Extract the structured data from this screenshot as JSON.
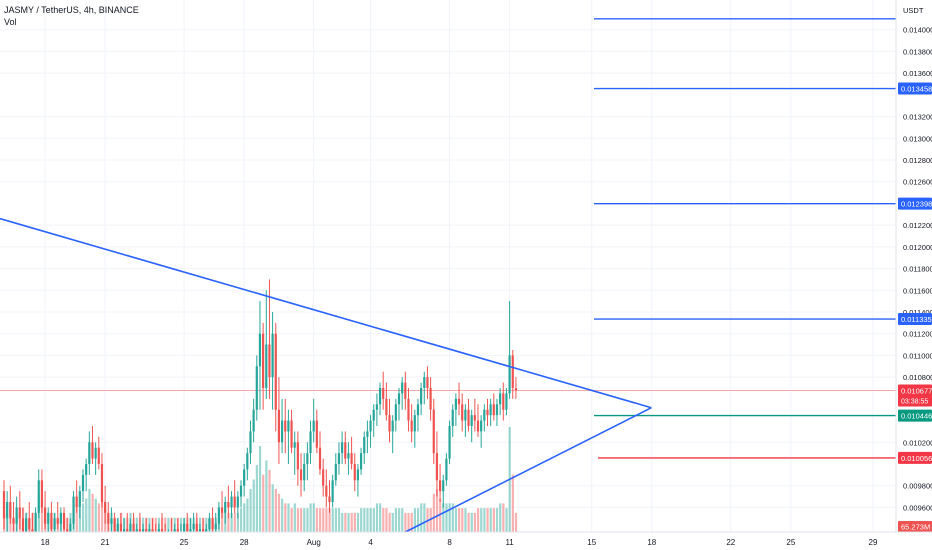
{
  "header": {
    "symbol_line": "JASMY / TetherUS, 4h, BINANCE",
    "volume_label": "Vol"
  },
  "colors": {
    "up": "#26a69a",
    "down": "#ef5350",
    "trendline": "#2962ff",
    "green_line": "#089981",
    "red_line": "#f23645",
    "price_line": "#f7a8a8",
    "grid": "#f0f3fa",
    "axis_text": "#131722"
  },
  "chart_data": {
    "type": "candlestick",
    "title": "JASMY / TetherUS, 4h, BINANCE",
    "currency": "USDT",
    "ylim": [
      0.0093,
      0.0142
    ],
    "y_ticks": [
      "0.014000",
      "0.013800",
      "0.013600",
      "0.013200",
      "0.013000",
      "0.012800",
      "0.012600",
      "0.012200",
      "0.012000",
      "0.011800",
      "0.011600",
      "0.011400",
      "0.011200",
      "0.011000",
      "0.010800",
      "0.010200",
      "0.009800",
      "0.009600"
    ],
    "x_ticks": [
      {
        "label": "18",
        "i": 13
      },
      {
        "label": "21",
        "i": 32
      },
      {
        "label": "25",
        "i": 57
      },
      {
        "label": "28",
        "i": 76
      },
      {
        "label": "Aug",
        "i": 98
      },
      {
        "label": "4",
        "i": 116
      },
      {
        "label": "8",
        "i": 141
      },
      {
        "label": "11",
        "i": 160
      },
      {
        "label": "15",
        "i": 186
      },
      {
        "label": "18",
        "i": 205
      },
      {
        "label": "22",
        "i": 230
      },
      {
        "label": "25",
        "i": 249
      },
      {
        "label": "29",
        "i": 275
      }
    ],
    "price_labels": [
      {
        "text": "0.013458",
        "value": 0.013458,
        "type": "blue"
      },
      {
        "text": "0.012398",
        "value": 0.012398,
        "type": "blue"
      },
      {
        "text": "0.011335",
        "value": 0.011335,
        "type": "blue"
      },
      {
        "text": "0.010446",
        "value": 0.010446,
        "type": "green"
      },
      {
        "text": "0.010056",
        "value": 0.010056,
        "type": "red"
      }
    ],
    "horizontal_levels": [
      {
        "value": 0.0141,
        "type": "blue"
      },
      {
        "value": 0.013458,
        "type": "blue"
      },
      {
        "value": 0.012398,
        "type": "blue"
      },
      {
        "value": 0.011335,
        "type": "blue"
      },
      {
        "value": 0.010446,
        "type": "green"
      },
      {
        "value": 0.010056,
        "type": "red"
      }
    ],
    "last_price": {
      "text": "0.010677",
      "value": 0.010677,
      "countdown": "03:38:55"
    },
    "volume_badge": "65.273M",
    "trendlines": [
      {
        "p1": [
          -6,
          0.0123
        ],
        "p2": [
          196,
          0.0105
        ]
      },
      {
        "p1": [
          122,
          0.0093
        ],
        "p2": [
          196,
          0.0105
        ]
      }
    ],
    "candles": [
      [
        0.00975,
        0.00985,
        0.0094,
        0.0095
      ],
      [
        0.0095,
        0.00975,
        0.00935,
        0.00965
      ],
      [
        0.00965,
        0.0098,
        0.00945,
        0.0095
      ],
      [
        0.0095,
        0.00965,
        0.0093,
        0.00945
      ],
      [
        0.00945,
        0.0097,
        0.00935,
        0.0096
      ],
      [
        0.0096,
        0.00975,
        0.0094,
        0.0095
      ],
      [
        0.0095,
        0.0096,
        0.00925,
        0.00935
      ],
      [
        0.00935,
        0.00955,
        0.00925,
        0.0095
      ],
      [
        0.0095,
        0.00965,
        0.00935,
        0.0094
      ],
      [
        0.0094,
        0.00955,
        0.0092,
        0.00935
      ],
      [
        0.00935,
        0.0096,
        0.0093,
        0.00955
      ],
      [
        0.00955,
        0.00995,
        0.0095,
        0.00985
      ],
      [
        0.00985,
        0.00995,
        0.00955,
        0.0096
      ],
      [
        0.0096,
        0.00975,
        0.0094,
        0.00945
      ],
      [
        0.00945,
        0.0096,
        0.0093,
        0.00955
      ],
      [
        0.00955,
        0.00965,
        0.00935,
        0.0094
      ],
      [
        0.0094,
        0.00955,
        0.00925,
        0.0095
      ],
      [
        0.0095,
        0.00965,
        0.0094,
        0.00945
      ],
      [
        0.00945,
        0.0096,
        0.00935,
        0.00955
      ],
      [
        0.00955,
        0.0096,
        0.00935,
        0.0094
      ],
      [
        0.0094,
        0.0095,
        0.00925,
        0.0093
      ],
      [
        0.0093,
        0.0095,
        0.0092,
        0.00945
      ],
      [
        0.00945,
        0.00975,
        0.0094,
        0.0097
      ],
      [
        0.0097,
        0.00985,
        0.00955,
        0.0096
      ],
      [
        0.0096,
        0.0098,
        0.0095,
        0.00975
      ],
      [
        0.00975,
        0.00995,
        0.00965,
        0.0099
      ],
      [
        0.0099,
        0.01005,
        0.00975,
        0.01
      ],
      [
        0.01,
        0.0103,
        0.0099,
        0.0102
      ],
      [
        0.0102,
        0.01035,
        0.01,
        0.01005
      ],
      [
        0.01005,
        0.0102,
        0.0099,
        0.01015
      ],
      [
        0.01015,
        0.01025,
        0.00995,
        0.01
      ],
      [
        0.01,
        0.0101,
        0.0096,
        0.00965
      ],
      [
        0.00965,
        0.0098,
        0.00945,
        0.00955
      ],
      [
        0.00955,
        0.00965,
        0.00935,
        0.00945
      ],
      [
        0.00945,
        0.0096,
        0.00935,
        0.0095
      ],
      [
        0.0095,
        0.00955,
        0.0093,
        0.00935
      ],
      [
        0.00935,
        0.0095,
        0.00925,
        0.00945
      ],
      [
        0.00945,
        0.00955,
        0.0093,
        0.00935
      ],
      [
        0.00935,
        0.0095,
        0.00925,
        0.0094
      ],
      [
        0.0094,
        0.00955,
        0.0093,
        0.00935
      ],
      [
        0.00935,
        0.0095,
        0.00925,
        0.00945
      ],
      [
        0.00945,
        0.00955,
        0.0093,
        0.00935
      ],
      [
        0.00935,
        0.00945,
        0.0092,
        0.0094
      ],
      [
        0.0094,
        0.00955,
        0.0093,
        0.00935
      ],
      [
        0.00935,
        0.00945,
        0.00925,
        0.0094
      ],
      [
        0.0094,
        0.0095,
        0.00925,
        0.0093
      ],
      [
        0.0093,
        0.00945,
        0.0092,
        0.0094
      ],
      [
        0.0094,
        0.0095,
        0.0093,
        0.00935
      ],
      [
        0.00935,
        0.00945,
        0.0092,
        0.0093
      ],
      [
        0.0093,
        0.00945,
        0.0092,
        0.0094
      ],
      [
        0.0094,
        0.00955,
        0.0093,
        0.00935
      ],
      [
        0.00935,
        0.00945,
        0.0092,
        0.0093
      ],
      [
        0.0093,
        0.0094,
        0.00915,
        0.00935
      ],
      [
        0.00935,
        0.0095,
        0.00925,
        0.0093
      ],
      [
        0.0093,
        0.00945,
        0.0092,
        0.0094
      ],
      [
        0.0094,
        0.0095,
        0.00925,
        0.0093
      ],
      [
        0.0093,
        0.00945,
        0.0092,
        0.00935
      ],
      [
        0.00935,
        0.0095,
        0.00925,
        0.00945
      ],
      [
        0.00945,
        0.00955,
        0.0093,
        0.00935
      ],
      [
        0.00935,
        0.0095,
        0.00925,
        0.0094
      ],
      [
        0.0094,
        0.00955,
        0.0093,
        0.00945
      ],
      [
        0.00945,
        0.00955,
        0.0093,
        0.00935
      ],
      [
        0.00935,
        0.00945,
        0.0092,
        0.0094
      ],
      [
        0.0094,
        0.0095,
        0.0093,
        0.00935
      ],
      [
        0.00935,
        0.00945,
        0.00925,
        0.0094
      ],
      [
        0.0094,
        0.00955,
        0.0093,
        0.0095
      ],
      [
        0.0095,
        0.0096,
        0.00935,
        0.0094
      ],
      [
        0.0094,
        0.00955,
        0.0093,
        0.00945
      ],
      [
        0.00945,
        0.00965,
        0.0094,
        0.0096
      ],
      [
        0.0096,
        0.00975,
        0.0095,
        0.00955
      ],
      [
        0.00955,
        0.0097,
        0.00945,
        0.00965
      ],
      [
        0.00965,
        0.0098,
        0.0095,
        0.0096
      ],
      [
        0.0096,
        0.00975,
        0.0095,
        0.0097
      ],
      [
        0.0097,
        0.00985,
        0.00955,
        0.0096
      ],
      [
        0.0096,
        0.00975,
        0.0095,
        0.0097
      ],
      [
        0.0097,
        0.00985,
        0.0096,
        0.0098
      ],
      [
        0.0098,
        0.01,
        0.0097,
        0.00995
      ],
      [
        0.00995,
        0.01015,
        0.00985,
        0.0101
      ],
      [
        0.0101,
        0.0104,
        0.01,
        0.0103
      ],
      [
        0.0103,
        0.0106,
        0.0102,
        0.0105
      ],
      [
        0.0105,
        0.011,
        0.0104,
        0.0109
      ],
      [
        0.0109,
        0.0115,
        0.0105,
        0.0112
      ],
      [
        0.0112,
        0.0113,
        0.0105,
        0.0107
      ],
      [
        0.0107,
        0.0116,
        0.0106,
        0.0111
      ],
      [
        0.0111,
        0.0117,
        0.0106,
        0.0108
      ],
      [
        0.0108,
        0.0114,
        0.0105,
        0.0112
      ],
      [
        0.0112,
        0.0113,
        0.0103,
        0.0105
      ],
      [
        0.0105,
        0.0108,
        0.01,
        0.0102
      ],
      [
        0.0102,
        0.0106,
        0.0101,
        0.0104
      ],
      [
        0.0104,
        0.0106,
        0.0101,
        0.0103
      ],
      [
        0.0103,
        0.0105,
        0.01,
        0.0104
      ],
      [
        0.0104,
        0.0105,
        0.0101,
        0.01015
      ],
      [
        0.01015,
        0.0103,
        0.0099,
        0.0102
      ],
      [
        0.0102,
        0.0103,
        0.0098,
        0.00995
      ],
      [
        0.00995,
        0.0101,
        0.0097,
        0.00985
      ],
      [
        0.00985,
        0.0101,
        0.00975,
        0.01
      ],
      [
        0.01,
        0.0102,
        0.00985,
        0.0101
      ],
      [
        0.0101,
        0.0104,
        0.01,
        0.0103
      ],
      [
        0.0103,
        0.0106,
        0.0102,
        0.0104
      ],
      [
        0.0104,
        0.0105,
        0.0101,
        0.01015
      ],
      [
        0.01015,
        0.0103,
        0.0099,
        0.00995
      ],
      [
        0.00995,
        0.01005,
        0.0097,
        0.0098
      ],
      [
        0.0098,
        0.00995,
        0.0096,
        0.0097
      ],
      [
        0.0097,
        0.00985,
        0.00955,
        0.00965
      ],
      [
        0.00965,
        0.0099,
        0.0096,
        0.00985
      ],
      [
        0.00985,
        0.0101,
        0.0098,
        0.01
      ],
      [
        0.01,
        0.0102,
        0.0099,
        0.0101
      ],
      [
        0.0101,
        0.0103,
        0.01,
        0.0102
      ],
      [
        0.0102,
        0.0103,
        0.01,
        0.01005
      ],
      [
        0.01005,
        0.0102,
        0.0099,
        0.0101
      ],
      [
        0.0101,
        0.01025,
        0.00995,
        0.01
      ],
      [
        0.01,
        0.0101,
        0.00975,
        0.00985
      ],
      [
        0.00985,
        0.01,
        0.0097,
        0.00995
      ],
      [
        0.00995,
        0.01015,
        0.0099,
        0.0101
      ],
      [
        0.0101,
        0.0103,
        0.01,
        0.01025
      ],
      [
        0.01025,
        0.0104,
        0.0101,
        0.0103
      ],
      [
        0.0103,
        0.01045,
        0.01015,
        0.0104
      ],
      [
        0.0104,
        0.01055,
        0.01025,
        0.0105
      ],
      [
        0.0105,
        0.01065,
        0.01035,
        0.01055
      ],
      [
        0.01055,
        0.01075,
        0.01045,
        0.0107
      ],
      [
        0.0107,
        0.01085,
        0.0105,
        0.0106
      ],
      [
        0.0106,
        0.01075,
        0.0104,
        0.01045
      ],
      [
        0.01045,
        0.0106,
        0.0102,
        0.0103
      ],
      [
        0.0103,
        0.01045,
        0.0101,
        0.0104
      ],
      [
        0.0104,
        0.0106,
        0.0103,
        0.01055
      ],
      [
        0.01055,
        0.0107,
        0.0104,
        0.01065
      ],
      [
        0.01065,
        0.0108,
        0.0105,
        0.01075
      ],
      [
        0.01075,
        0.01085,
        0.0105,
        0.0106
      ],
      [
        0.0106,
        0.0107,
        0.0103,
        0.0104
      ],
      [
        0.0104,
        0.01055,
        0.0102,
        0.0103
      ],
      [
        0.0103,
        0.0105,
        0.01015,
        0.01045
      ],
      [
        0.01045,
        0.0106,
        0.0103,
        0.01055
      ],
      [
        0.01055,
        0.01075,
        0.01045,
        0.0107
      ],
      [
        0.0107,
        0.01085,
        0.01055,
        0.0108
      ],
      [
        0.0108,
        0.0109,
        0.0106,
        0.0107
      ],
      [
        0.0107,
        0.0108,
        0.0104,
        0.0105
      ],
      [
        0.0105,
        0.0106,
        0.01,
        0.0101
      ],
      [
        0.0101,
        0.0103,
        0.0097,
        0.00985
      ],
      [
        0.00985,
        0.01,
        0.00965,
        0.00975
      ],
      [
        0.00975,
        0.0099,
        0.0096,
        0.00985
      ],
      [
        0.00985,
        0.0101,
        0.0098,
        0.01005
      ],
      [
        0.01005,
        0.0104,
        0.01,
        0.01035
      ],
      [
        0.01035,
        0.01055,
        0.01025,
        0.0105
      ],
      [
        0.0105,
        0.01065,
        0.01035,
        0.0106
      ],
      [
        0.0106,
        0.01075,
        0.01045,
        0.01055
      ],
      [
        0.01055,
        0.01065,
        0.0103,
        0.0104
      ],
      [
        0.0104,
        0.01055,
        0.01025,
        0.0105
      ],
      [
        0.0105,
        0.0106,
        0.0103,
        0.01035
      ],
      [
        0.01035,
        0.0105,
        0.0102,
        0.01045
      ],
      [
        0.01045,
        0.0106,
        0.0103,
        0.0104
      ],
      [
        0.0104,
        0.01055,
        0.01025,
        0.0103
      ],
      [
        0.0103,
        0.01045,
        0.01015,
        0.0104
      ],
      [
        0.0104,
        0.01055,
        0.0103,
        0.0105
      ],
      [
        0.0105,
        0.0106,
        0.01035,
        0.01045
      ],
      [
        0.01045,
        0.0106,
        0.01035,
        0.01055
      ],
      [
        0.01055,
        0.01065,
        0.0104,
        0.01045
      ],
      [
        0.01045,
        0.0106,
        0.01035,
        0.01055
      ],
      [
        0.01055,
        0.0107,
        0.01045,
        0.01065
      ],
      [
        0.01065,
        0.01075,
        0.0104,
        0.0105
      ],
      [
        0.0105,
        0.0107,
        0.01045,
        0.01065
      ],
      [
        0.01065,
        0.0115,
        0.0106,
        0.011
      ],
      [
        0.011,
        0.01105,
        0.0106,
        0.0107
      ],
      [
        0.0107,
        0.0108,
        0.0106,
        0.01068
      ]
    ],
    "volumes": [
      4,
      3,
      5,
      3,
      4,
      3,
      5,
      4,
      3,
      4,
      4,
      8,
      7,
      5,
      4,
      3,
      4,
      3,
      4,
      3,
      3,
      4,
      6,
      5,
      5,
      6,
      7,
      9,
      8,
      7,
      6,
      7,
      5,
      4,
      4,
      3,
      3,
      4,
      3,
      3,
      4,
      3,
      3,
      3,
      3,
      3,
      3,
      3,
      3,
      3,
      3,
      3,
      3,
      3,
      3,
      3,
      3,
      3,
      3,
      3,
      3,
      3,
      3,
      3,
      3,
      3,
      3,
      3,
      3,
      4,
      4,
      4,
      4,
      4,
      4,
      5,
      6,
      7,
      9,
      11,
      14,
      18,
      12,
      15,
      13,
      10,
      9,
      8,
      7,
      6,
      6,
      5,
      6,
      5,
      5,
      5,
      5,
      6,
      6,
      5,
      5,
      5,
      5,
      5,
      5,
      5,
      5,
      4,
      4,
      4,
      4,
      4,
      4,
      5,
      5,
      5,
      5,
      5,
      6,
      6,
      5,
      5,
      4,
      4,
      5,
      5,
      5,
      4,
      4,
      4,
      5,
      5,
      6,
      6,
      5,
      5,
      8,
      9,
      7,
      6,
      6,
      6,
      6,
      5,
      5,
      5,
      5,
      4,
      4,
      4,
      5,
      5,
      5,
      5,
      5,
      5,
      5,
      6,
      6,
      5,
      22,
      12,
      4
    ]
  }
}
